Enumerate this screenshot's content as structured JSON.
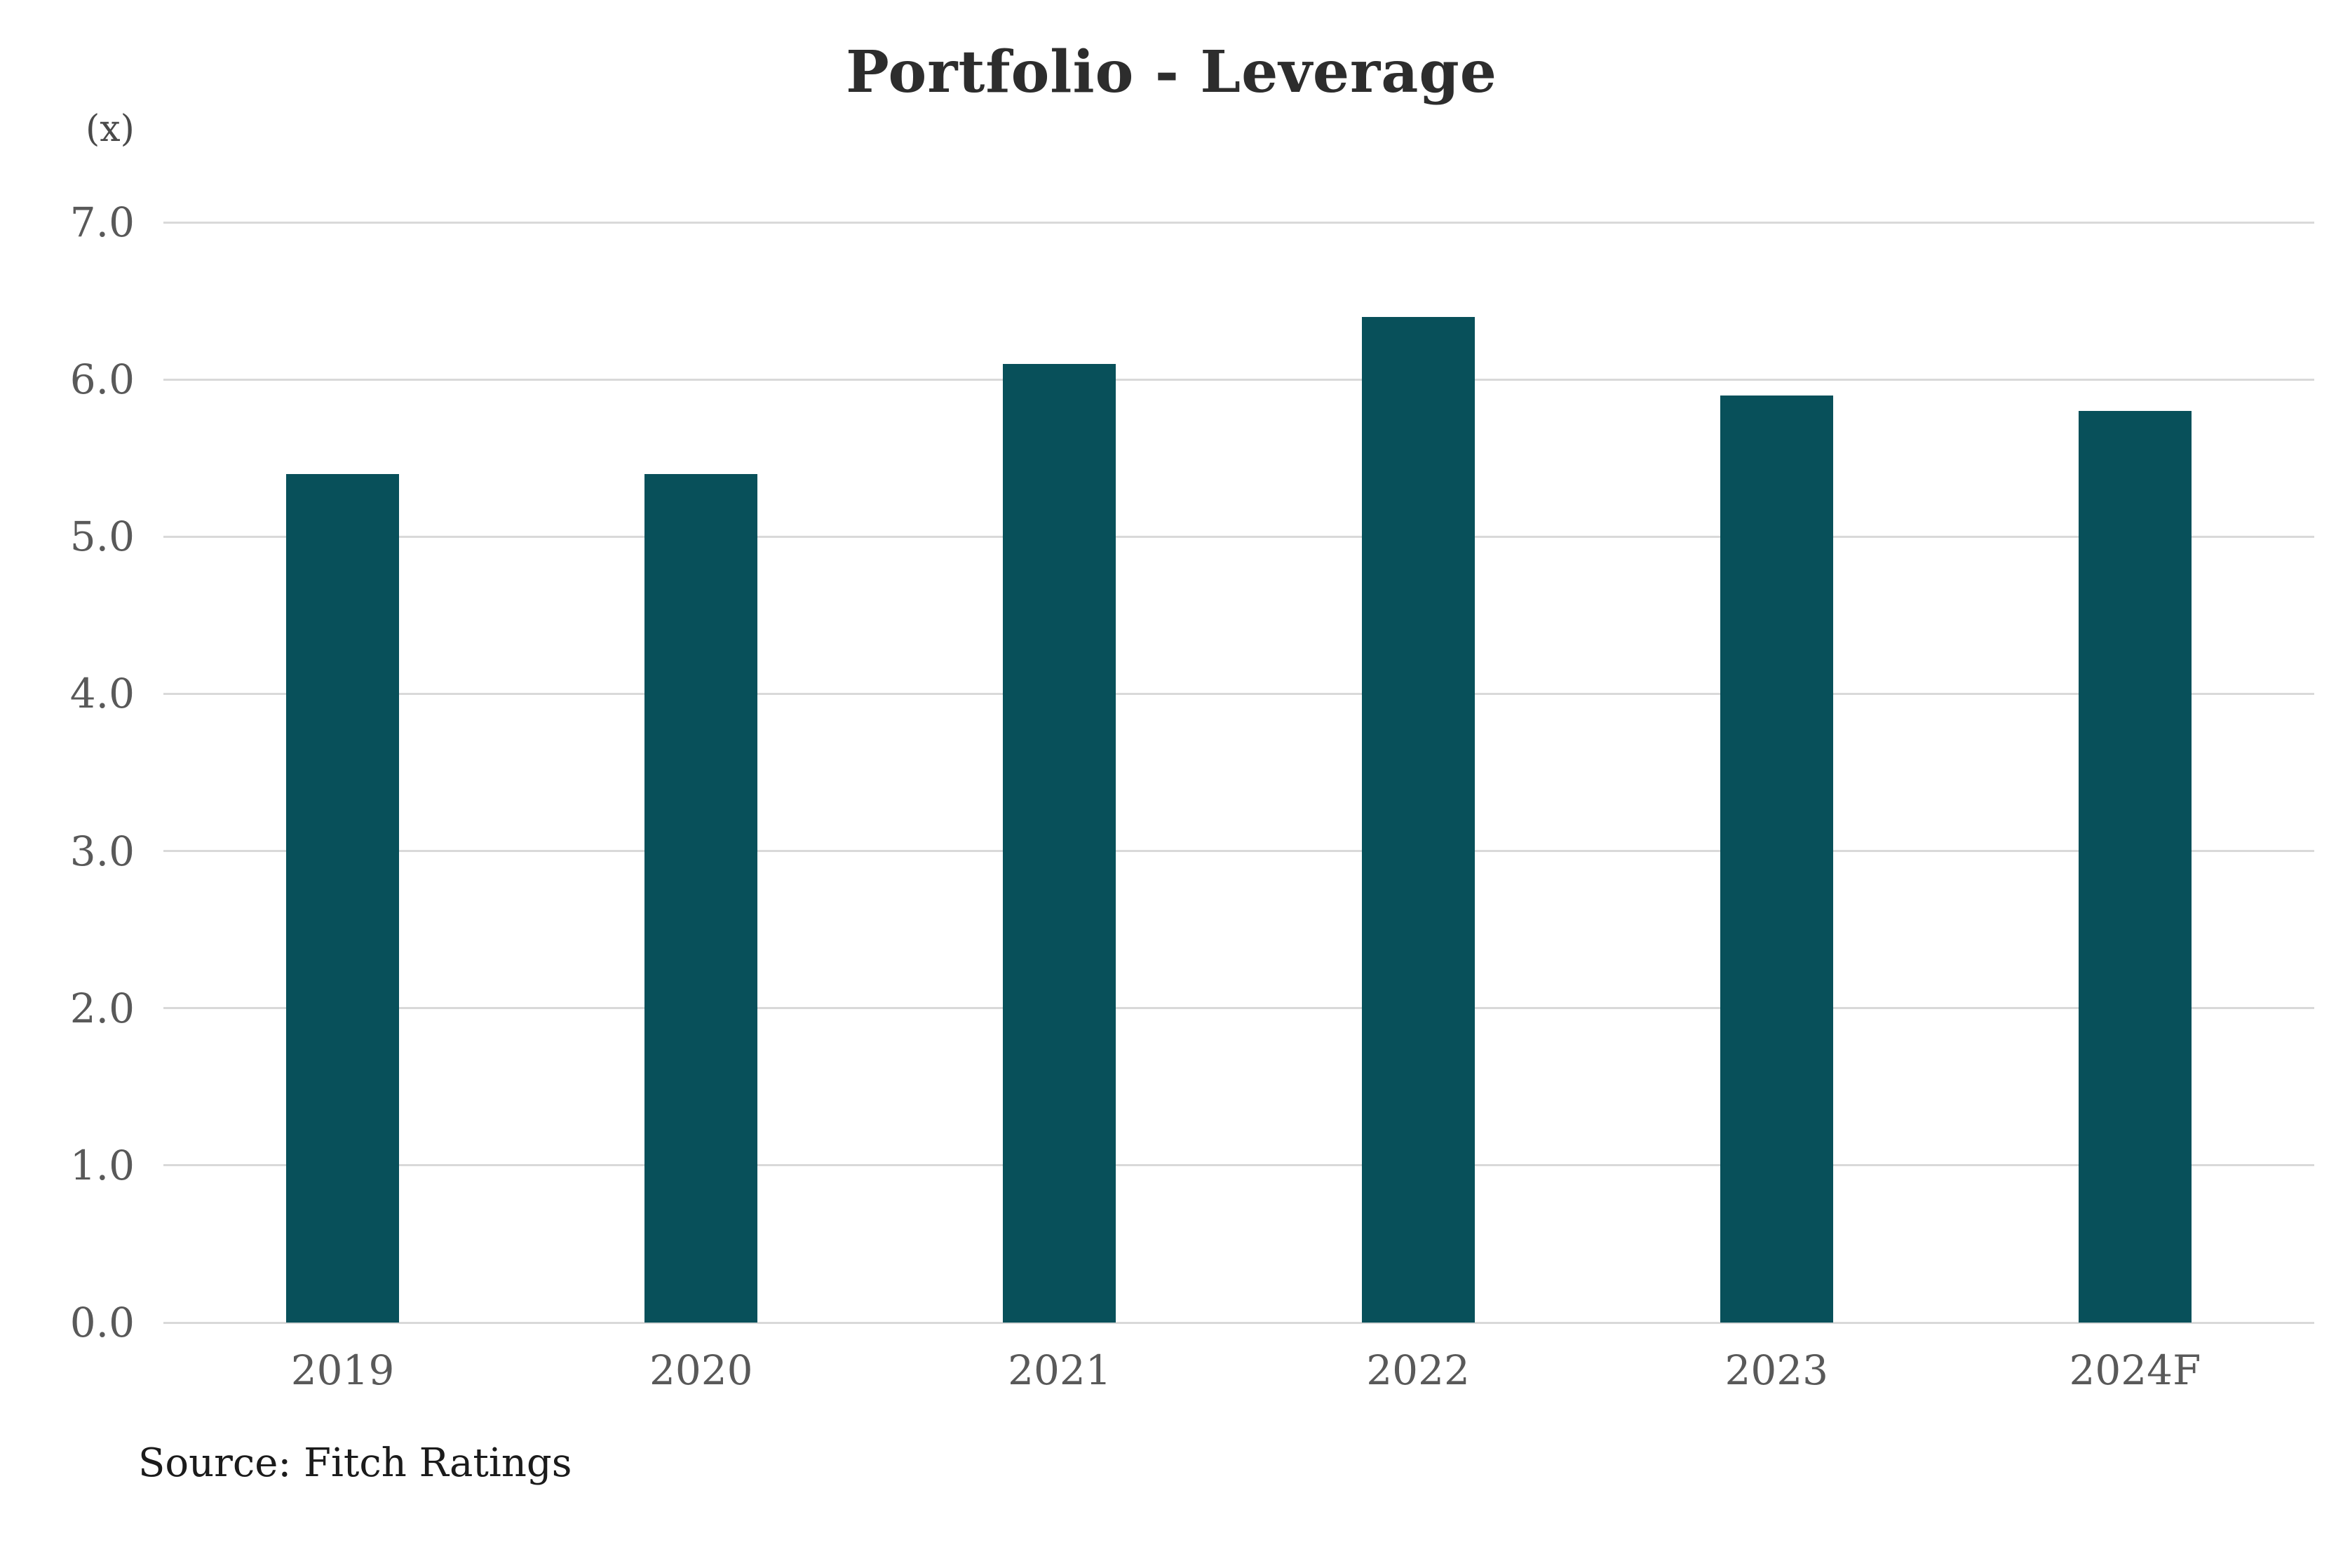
{
  "page": {
    "background": "#FFFFFF"
  },
  "chart_data": {
    "type": "bar",
    "title": "Portfolio - Leverage",
    "unit_label": "(x)",
    "categories": [
      "2019",
      "2020",
      "2021",
      "2022",
      "2023",
      "2024F"
    ],
    "values": [
      5.4,
      5.4,
      6.1,
      6.4,
      5.9,
      5.8
    ],
    "xlabel": "",
    "ylabel": "(x)",
    "ylim": [
      0,
      7
    ],
    "yticks": [
      0,
      1,
      2,
      3,
      4,
      5,
      6,
      7
    ],
    "ytick_labels": [
      "0.0",
      "1.0",
      "2.0",
      "3.0",
      "4.0",
      "5.0",
      "6.0",
      "7.0"
    ],
    "grid": "horizontal",
    "legend": "none",
    "bar_color": "#08505A",
    "gridline_color": "#D9D9D9",
    "tick_color": "#595959",
    "title_color": "#2D2D2D"
  },
  "source": {
    "label": "Source: Fitch Ratings"
  }
}
